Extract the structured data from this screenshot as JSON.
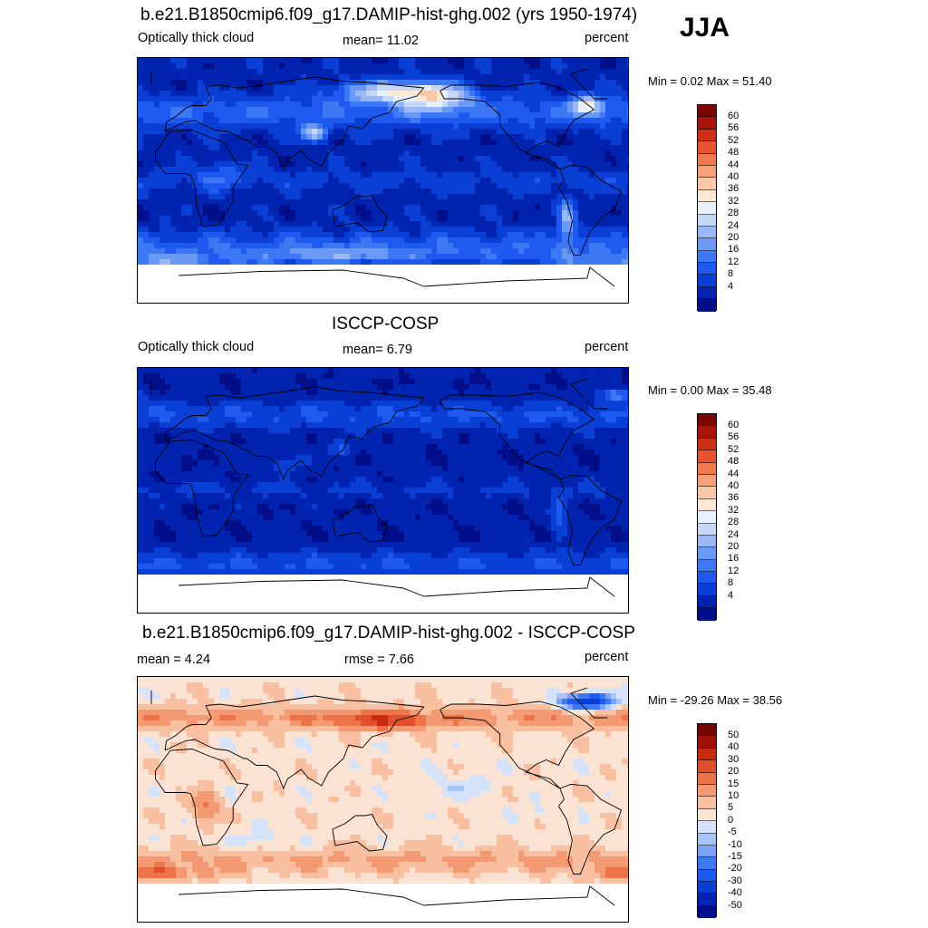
{
  "season": "JJA",
  "palette_cloud": [
    "#000e8a",
    "#0024b0",
    "#0a3fd6",
    "#1e5af0",
    "#3d78f5",
    "#6a98f5",
    "#99b8f5",
    "#c6d8f7",
    "#e8f0fb",
    "#fde8d6",
    "#fbc9a8",
    "#f7a07a",
    "#f07a4e",
    "#e6552f",
    "#cf2f12",
    "#a81508",
    "#7a0500"
  ],
  "palette_diff": [
    "#000e8a",
    "#0024b0",
    "#0a3fd6",
    "#1e5af0",
    "#3d78f5",
    "#7aa2f5",
    "#a8c4f7",
    "#d4e3fa",
    "#fbe3d4",
    "#f8c0a0",
    "#f39a72",
    "#ec7448",
    "#e0502a",
    "#c82c10",
    "#9e1206",
    "#780400"
  ],
  "panels": [
    {
      "title": "b.e21.B1850cmip6.f09_g17.DAMIP-hist-ghg.002 (yrs 1950-1974)",
      "left_label": "Optically thick cloud",
      "center_label": "mean=  11.02",
      "right_label": "percent",
      "minmax": "Min =   0.02 Max =  51.40",
      "ticks": [
        "60",
        "56",
        "52",
        "48",
        "44",
        "40",
        "36",
        "32",
        "28",
        "24",
        "20",
        "16",
        "12",
        "8",
        "4"
      ],
      "field": "model"
    },
    {
      "title": "ISCCP-COSP",
      "left_label": "Optically thick cloud",
      "center_label": "mean=   6.79",
      "right_label": "percent",
      "minmax": "Min =   0.00 Max =  35.48",
      "ticks": [
        "60",
        "56",
        "52",
        "48",
        "44",
        "40",
        "36",
        "32",
        "28",
        "24",
        "20",
        "16",
        "12",
        "8",
        "4"
      ],
      "field": "obs"
    },
    {
      "title": "b.e21.B1850cmip6.f09_g17.DAMIP-hist-ghg.002 - ISCCP-COSP",
      "left_label": "mean =   4.24",
      "center_label": "rmse =   7.66",
      "right_label": "percent",
      "minmax": "Min = -29.26 Max =  38.56",
      "ticks": [
        "50",
        "40",
        "30",
        "20",
        "15",
        "10",
        "5",
        "0",
        "-5",
        "-10",
        "-15",
        "-20",
        "-30",
        "-40",
        "-50"
      ],
      "field": "diff"
    }
  ]
}
